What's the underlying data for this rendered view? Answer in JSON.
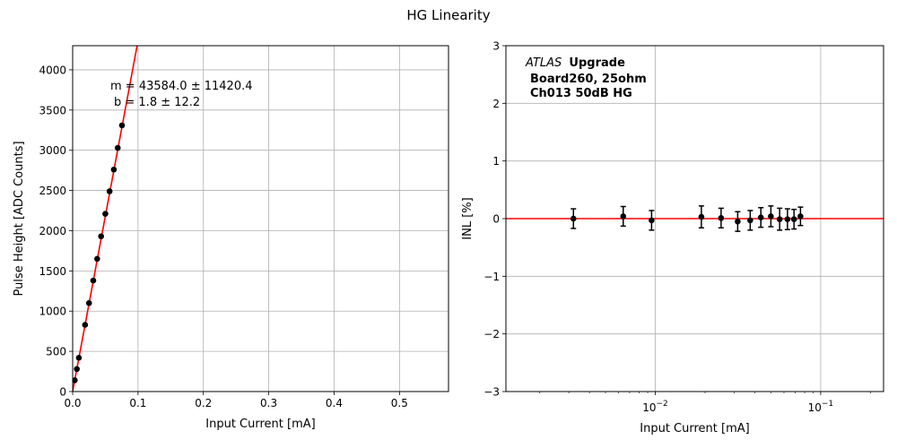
{
  "title": "HG Linearity",
  "chart_data": [
    {
      "type": "scatter",
      "xlabel": "Input Current [mA]",
      "ylabel": "Pulse Height [ADC Counts]",
      "xlim": [
        0,
        0.575
      ],
      "ylim": [
        0,
        4300
      ],
      "xticks": [
        0.0,
        0.1,
        0.2,
        0.3,
        0.4,
        0.5
      ],
      "xtick_labels": [
        "0.0",
        "0.1",
        "0.2",
        "0.3",
        "0.4",
        "0.5"
      ],
      "yticks": [
        0,
        500,
        1000,
        1500,
        2000,
        2500,
        3000,
        3500,
        4000
      ],
      "ytick_labels": [
        "0",
        "500",
        "1000",
        "1500",
        "2000",
        "2500",
        "3000",
        "3500",
        "4000"
      ],
      "grid": true,
      "points": {
        "x": [
          0.0032,
          0.0064,
          0.0095,
          0.019,
          0.025,
          0.0315,
          0.0375,
          0.0435,
          0.05,
          0.0565,
          0.063,
          0.069,
          0.0755
        ],
        "y": [
          140,
          280,
          420,
          830,
          1100,
          1380,
          1650,
          1930,
          2210,
          2490,
          2760,
          3030,
          3310
        ]
      },
      "fit": {
        "slope": 43584.0,
        "intercept": 1.8,
        "color": "#ff0000"
      },
      "annotation": {
        "line1": "m = 43584.0 ± 11420.4",
        "line2": "b = 1.8 ± 12.2"
      },
      "marker_color": "#000000"
    },
    {
      "type": "scatter",
      "xlabel": "Input Current [mA]",
      "ylabel": "INL [%]",
      "xscale": "log",
      "xlim": [
        0.00125,
        0.24
      ],
      "ylim": [
        -3,
        3
      ],
      "xticks": [
        0.01,
        0.1
      ],
      "xtick_labels": [
        {
          "base": "10",
          "exp": "−2"
        },
        {
          "base": "10",
          "exp": "−1"
        }
      ],
      "yticks": [
        3,
        2,
        1,
        0,
        -1,
        -2,
        -3
      ],
      "ytick_labels": [
        "3",
        "2",
        "1",
        "0",
        "−1",
        "−2",
        "−3"
      ],
      "grid": true,
      "points": {
        "x": [
          0.0032,
          0.0064,
          0.0095,
          0.019,
          0.025,
          0.0315,
          0.0375,
          0.0435,
          0.05,
          0.0565,
          0.063,
          0.069,
          0.0755
        ],
        "y": [
          0.0,
          0.04,
          -0.03,
          0.03,
          0.01,
          -0.05,
          -0.03,
          0.02,
          0.04,
          -0.01,
          -0.01,
          -0.01,
          0.04
        ],
        "yerr": [
          0.17,
          0.17,
          0.17,
          0.19,
          0.17,
          0.17,
          0.17,
          0.17,
          0.18,
          0.19,
          0.18,
          0.17,
          0.16
        ]
      },
      "reference_line": {
        "y": 0,
        "color": "#ff0000"
      },
      "annotation": {
        "italic": "ATLAS",
        "bold": "Upgrade",
        "line2": "Board260, 25ohm",
        "line3": "Ch013 50dB HG"
      },
      "marker_color": "#000000"
    }
  ]
}
